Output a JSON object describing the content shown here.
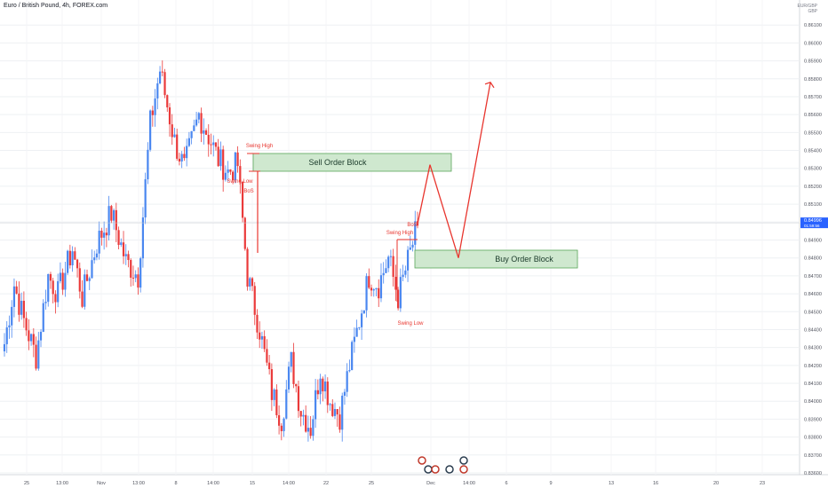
{
  "header": {
    "symbol_title": "Euro / British Pound, 4h, FOREX.com"
  },
  "price_axis": {
    "currency_top": "EUR/GBP",
    "currency_bottom": "GBP",
    "last_price": "0.84996",
    "last_price_sub": "01:59:56"
  },
  "colors": {
    "up_candle": "#4a87f0",
    "down_candle": "#ea3a3a",
    "zone_fill": "#cfe8cf",
    "zone_border": "#5aa55a",
    "arrow": "#e8352e",
    "annotation": "#e8352e",
    "grid": "#eef0f3",
    "axis_text": "#50535e"
  },
  "annotations": {
    "sell_block": "Sell Order Block",
    "buy_block": "Buy Order Block",
    "swing_high_1": "Swing High",
    "swing_low_1": "Swing Low",
    "bos_1": "BoS",
    "bos_2": "BoS",
    "swing_high_2": "Swing High",
    "swing_low_2": "Swing Low"
  },
  "chart_data": {
    "type": "candlestick",
    "ylim": [
      0.836,
      0.862
    ],
    "y_ticks": [
      "0.86100",
      "0.86000",
      "0.85900",
      "0.85800",
      "0.85700",
      "0.85600",
      "0.85500",
      "0.85400",
      "0.85300",
      "0.85200",
      "0.85100",
      "0.85000",
      "0.84900",
      "0.84800",
      "0.84700",
      "0.84600",
      "0.84500",
      "0.84400",
      "0.84300",
      "0.84200",
      "0.84100",
      "0.84000",
      "0.83900",
      "0.83800",
      "0.83700",
      "0.83600"
    ],
    "x_ticks": [
      "25",
      "13:00",
      "Nov",
      "13:00",
      "8",
      "14:00",
      "15",
      "14:00",
      "22",
      "25",
      "Dec",
      "14:00",
      "6",
      "9",
      "13",
      "16",
      "20",
      "23"
    ],
    "path_points": [
      {
        "i": 0,
        "p": 0.8432
      },
      {
        "i": 4,
        "p": 0.8465
      },
      {
        "i": 8,
        "p": 0.8445
      },
      {
        "i": 13,
        "p": 0.8425
      },
      {
        "i": 18,
        "p": 0.847
      },
      {
        "i": 22,
        "p": 0.846
      },
      {
        "i": 28,
        "p": 0.8485
      },
      {
        "i": 32,
        "p": 0.8458
      },
      {
        "i": 38,
        "p": 0.8488
      },
      {
        "i": 44,
        "p": 0.8505
      },
      {
        "i": 50,
        "p": 0.8478
      },
      {
        "i": 55,
        "p": 0.847
      },
      {
        "i": 60,
        "p": 0.8555
      },
      {
        "i": 64,
        "p": 0.8585
      },
      {
        "i": 70,
        "p": 0.8545
      },
      {
        "i": 74,
        "p": 0.853
      },
      {
        "i": 80,
        "p": 0.856
      },
      {
        "i": 84,
        "p": 0.8548
      },
      {
        "i": 88,
        "p": 0.8535
      },
      {
        "i": 92,
        "p": 0.8528
      },
      {
        "i": 96,
        "p": 0.8532
      },
      {
        "i": 100,
        "p": 0.847
      },
      {
        "i": 105,
        "p": 0.844
      },
      {
        "i": 110,
        "p": 0.8405
      },
      {
        "i": 114,
        "p": 0.839
      },
      {
        "i": 118,
        "p": 0.8422
      },
      {
        "i": 122,
        "p": 0.8395
      },
      {
        "i": 126,
        "p": 0.8385
      },
      {
        "i": 130,
        "p": 0.8418
      },
      {
        "i": 134,
        "p": 0.84
      },
      {
        "i": 138,
        "p": 0.8392
      },
      {
        "i": 142,
        "p": 0.842
      },
      {
        "i": 146,
        "p": 0.8445
      },
      {
        "i": 150,
        "p": 0.847
      },
      {
        "i": 154,
        "p": 0.8465
      },
      {
        "i": 158,
        "p": 0.848
      },
      {
        "i": 162,
        "p": 0.8458
      },
      {
        "i": 166,
        "p": 0.8478
      },
      {
        "i": 170,
        "p": 0.8498
      }
    ],
    "projection": [
      0.8499,
      0.8532,
      0.848,
      0.8578
    ],
    "last_price": 0.84996
  }
}
